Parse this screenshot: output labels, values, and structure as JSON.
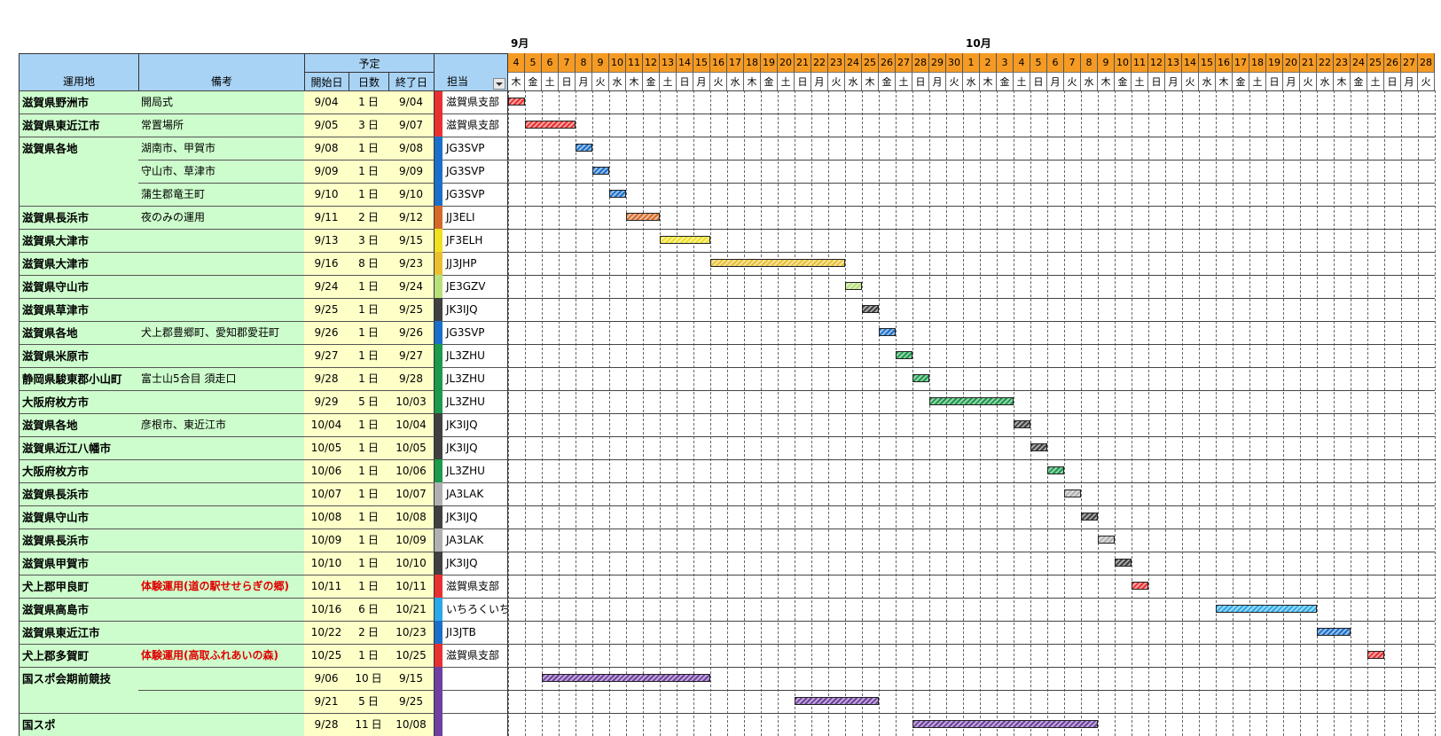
{
  "months": [
    "9月",
    "10月"
  ],
  "headers": {
    "location": "運用地",
    "note": "備考",
    "plan": "予定",
    "start": "開始日",
    "days": "日数",
    "end": "終了日",
    "assignee": "担当",
    "filter_icon": "dropdown-arrow-icon"
  },
  "day_numbers": [
    "4",
    "5",
    "6",
    "7",
    "8",
    "9",
    "10",
    "11",
    "12",
    "13",
    "14",
    "15",
    "16",
    "17",
    "18",
    "19",
    "20",
    "21",
    "22",
    "23",
    "24",
    "25",
    "26",
    "27",
    "28",
    "29",
    "30",
    "1",
    "2",
    "3",
    "4",
    "5",
    "6",
    "7",
    "8",
    "9",
    "10",
    "11",
    "12",
    "13",
    "14",
    "15",
    "16",
    "17",
    "18",
    "19",
    "20",
    "21",
    "22",
    "23",
    "24",
    "25",
    "26",
    "27",
    "28"
  ],
  "weekdays": [
    "木",
    "金",
    "土",
    "日",
    "月",
    "火",
    "水",
    "木",
    "金",
    "土",
    "日",
    "月",
    "火",
    "水",
    "木",
    "金",
    "土",
    "日",
    "月",
    "火",
    "水",
    "木",
    "金",
    "土",
    "日",
    "月",
    "火",
    "水",
    "木",
    "金",
    "土",
    "日",
    "月",
    "火",
    "水",
    "木",
    "金",
    "土",
    "日",
    "月",
    "火",
    "水",
    "木",
    "金",
    "土",
    "日",
    "月",
    "火",
    "水",
    "木",
    "金",
    "土",
    "日",
    "月",
    "火"
  ],
  "rows": [
    {
      "loc": "滋賀県野洲市",
      "note": "開局式",
      "start": "9/04",
      "days": "1",
      "unit": "日",
      "end": "9/04",
      "ass": "滋賀県支部",
      "color": "#e83030",
      "bar_start": 0,
      "bar_days": 1
    },
    {
      "loc": "滋賀県東近江市",
      "note": "常置場所",
      "start": "9/05",
      "days": "3",
      "unit": "日",
      "end": "9/07",
      "ass": "滋賀県支部",
      "color": "#e83030",
      "bar_start": 1,
      "bar_days": 3
    },
    {
      "loc": "滋賀県各地",
      "note": "湖南市、甲賀市",
      "start": "9/08",
      "days": "1",
      "unit": "日",
      "end": "9/08",
      "ass": "JG3SVP",
      "color": "#1c6fc9",
      "bar_start": 4,
      "bar_days": 1
    },
    {
      "loc": "",
      "note": "守山市、草津市",
      "start": "9/09",
      "days": "1",
      "unit": "日",
      "end": "9/09",
      "ass": "JG3SVP",
      "color": "#1c6fc9",
      "bar_start": 5,
      "bar_days": 1
    },
    {
      "loc": "",
      "note": "蒲生郡竜王町",
      "start": "9/10",
      "days": "1",
      "unit": "日",
      "end": "9/10",
      "ass": "JG3SVP",
      "color": "#1c6fc9",
      "bar_start": 6,
      "bar_days": 1
    },
    {
      "loc": "滋賀県長浜市",
      "note": "夜のみの運用",
      "start": "9/11",
      "days": "2",
      "unit": "日",
      "end": "9/12",
      "ass": "JJ3ELI",
      "color": "#d56a27",
      "bar_start": 7,
      "bar_days": 2
    },
    {
      "loc": "滋賀県大津市",
      "note": "",
      "start": "9/13",
      "days": "3",
      "unit": "日",
      "end": "9/15",
      "ass": "JF3ELH",
      "color": "#f0e020",
      "bar_start": 9,
      "bar_days": 3
    },
    {
      "loc": "滋賀県大津市",
      "note": "",
      "start": "9/16",
      "days": "8",
      "unit": "日",
      "end": "9/23",
      "ass": "JJ3JHP",
      "color": "#e8c030",
      "bar_start": 12,
      "bar_days": 8
    },
    {
      "loc": "滋賀県守山市",
      "note": "",
      "start": "9/24",
      "days": "1",
      "unit": "日",
      "end": "9/24",
      "ass": "JE3GZV",
      "color": "#b8e07a",
      "bar_start": 20,
      "bar_days": 1
    },
    {
      "loc": "滋賀県草津市",
      "note": "",
      "start": "9/25",
      "days": "1",
      "unit": "日",
      "end": "9/25",
      "ass": "JK3IJQ",
      "color": "#404040",
      "bar_start": 21,
      "bar_days": 1
    },
    {
      "loc": "滋賀県各地",
      "note": "犬上郡豊郷町、愛知郡愛荘町",
      "start": "9/26",
      "days": "1",
      "unit": "日",
      "end": "9/26",
      "ass": "JG3SVP",
      "color": "#1c6fc9",
      "bar_start": 22,
      "bar_days": 1
    },
    {
      "loc": "滋賀県米原市",
      "note": "",
      "start": "9/27",
      "days": "1",
      "unit": "日",
      "end": "9/27",
      "ass": "JL3ZHU",
      "color": "#1a9a4a",
      "bar_start": 23,
      "bar_days": 1
    },
    {
      "loc": "静岡県駿東郡小山町",
      "note": "富士山5合目 須走口",
      "start": "9/28",
      "days": "1",
      "unit": "日",
      "end": "9/28",
      "ass": "JL3ZHU",
      "color": "#1a9a4a",
      "bar_start": 24,
      "bar_days": 1
    },
    {
      "loc": "大阪府枚方市",
      "note": "",
      "start": "9/29",
      "days": "5",
      "unit": "日",
      "end": "10/03",
      "ass": "JL3ZHU",
      "color": "#1a9a4a",
      "bar_start": 25,
      "bar_days": 5
    },
    {
      "loc": "滋賀県各地",
      "note": "彦根市、東近江市",
      "start": "10/04",
      "days": "1",
      "unit": "日",
      "end": "10/04",
      "ass": "JK3IJQ",
      "color": "#404040",
      "bar_start": 30,
      "bar_days": 1
    },
    {
      "loc": "滋賀県近江八幡市",
      "note": "",
      "start": "10/05",
      "days": "1",
      "unit": "日",
      "end": "10/05",
      "ass": "JK3IJQ",
      "color": "#404040",
      "bar_start": 31,
      "bar_days": 1
    },
    {
      "loc": "大阪府枚方市",
      "note": "",
      "start": "10/06",
      "days": "1",
      "unit": "日",
      "end": "10/06",
      "ass": "JL3ZHU",
      "color": "#1a9a4a",
      "bar_start": 32,
      "bar_days": 1
    },
    {
      "loc": "滋賀県長浜市",
      "note": "",
      "start": "10/07",
      "days": "1",
      "unit": "日",
      "end": "10/07",
      "ass": "JA3LAK",
      "color": "#b0b0b0",
      "bar_start": 33,
      "bar_days": 1
    },
    {
      "loc": "滋賀県守山市",
      "note": "",
      "start": "10/08",
      "days": "1",
      "unit": "日",
      "end": "10/08",
      "ass": "JK3IJQ",
      "color": "#404040",
      "bar_start": 34,
      "bar_days": 1
    },
    {
      "loc": "滋賀県長浜市",
      "note": "",
      "start": "10/09",
      "days": "1",
      "unit": "日",
      "end": "10/09",
      "ass": "JA3LAK",
      "color": "#b0b0b0",
      "bar_start": 35,
      "bar_days": 1
    },
    {
      "loc": "滋賀県甲賀市",
      "note": "",
      "start": "10/10",
      "days": "1",
      "unit": "日",
      "end": "10/10",
      "ass": "JK3IJQ",
      "color": "#404040",
      "bar_start": 36,
      "bar_days": 1
    },
    {
      "loc": "犬上郡甲良町",
      "note": "体験運用(道の駅せせらぎの郷)",
      "note_red": true,
      "start": "10/11",
      "days": "1",
      "unit": "日",
      "end": "10/11",
      "ass": "滋賀県支部",
      "color": "#e83030",
      "bar_start": 37,
      "bar_days": 1
    },
    {
      "loc": "滋賀県高島市",
      "note": "",
      "start": "10/16",
      "days": "6",
      "unit": "日",
      "end": "10/21",
      "ass": "いちろくいち",
      "color": "#2aa8e8",
      "bar_start": 42,
      "bar_days": 6
    },
    {
      "loc": "滋賀県東近江市",
      "note": "",
      "start": "10/22",
      "days": "2",
      "unit": "日",
      "end": "10/23",
      "ass": "JI3JTB",
      "color": "#1c6fc9",
      "bar_start": 48,
      "bar_days": 2
    },
    {
      "loc": "犬上郡多賀町",
      "note": "体験運用(高取ふれあいの森)",
      "note_red": true,
      "start": "10/25",
      "days": "1",
      "unit": "日",
      "end": "10/25",
      "ass": "滋賀県支部",
      "color": "#e83030",
      "bar_start": 51,
      "bar_days": 1
    },
    {
      "loc": "国スポ会期前競技",
      "note": "",
      "start": "9/06",
      "days": "10",
      "unit": "日",
      "end": "9/15",
      "ass": "",
      "color": "#7040a0",
      "bar_start": 2,
      "bar_days": 10
    },
    {
      "loc": "",
      "note": "",
      "start": "9/21",
      "days": "5",
      "unit": "日",
      "end": "9/25",
      "ass": "",
      "color": "#7040a0",
      "bar_start": 17,
      "bar_days": 5
    },
    {
      "loc": "国スポ",
      "note": "",
      "start": "9/28",
      "days": "11",
      "unit": "日",
      "end": "10/08",
      "ass": "",
      "color": "#7040a0",
      "bar_start": 24,
      "bar_days": 11
    }
  ]
}
